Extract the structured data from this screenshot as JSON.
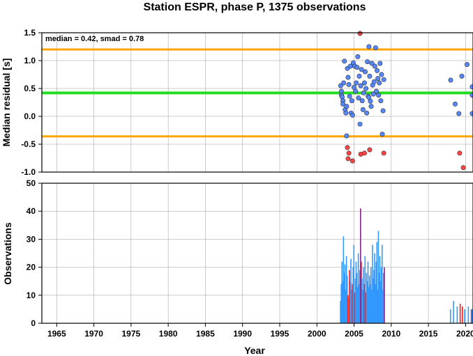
{
  "chart_data": [
    {
      "type": "scatter",
      "title": "Station ESPR, phase P, 1375 observations",
      "ylabel": "Median residual [s]",
      "xlim": [
        1963,
        2021
      ],
      "ylim": [
        -1.0,
        1.5
      ],
      "yticks": [
        "1.5",
        "1.0",
        "0.5",
        "0.0",
        "-0.5",
        "-1.0"
      ],
      "grid": true,
      "annotation": "median = 0.42, smad = 0.78",
      "reference_lines": {
        "median": 0.42,
        "upper": 1.2,
        "lower": -0.36
      },
      "colors": {
        "median_line": "#22dd22",
        "bound_line": "#ffa500",
        "inlier": "#5588ff",
        "outlier": "#ff4444"
      },
      "series": [
        {
          "kind": "inlier",
          "points": [
            [
              2003.2,
              0.55
            ],
            [
              2003.3,
              0.45
            ],
            [
              2003.3,
              0.38
            ],
            [
              2003.4,
              0.35
            ],
            [
              2003.5,
              0.28
            ],
            [
              2003.5,
              0.22
            ],
            [
              2003.6,
              0.6
            ],
            [
              2003.7,
              0.99
            ],
            [
              2003.8,
              0.12
            ],
            [
              2003.9,
              0.06
            ],
            [
              2004.0,
              0.18
            ],
            [
              2004.0,
              -0.35
            ],
            [
              2004.1,
              0.86
            ],
            [
              2004.2,
              0.7
            ],
            [
              2004.3,
              0.57
            ],
            [
              2004.4,
              0.36
            ],
            [
              2004.5,
              0.9
            ],
            [
              2004.6,
              0.06
            ],
            [
              2004.7,
              0.28
            ],
            [
              2004.8,
              0.02
            ],
            [
              2004.9,
              0.96
            ],
            [
              2005.0,
              0.52
            ],
            [
              2005.1,
              0.9
            ],
            [
              2005.2,
              0.45
            ],
            [
              2005.3,
              0.6
            ],
            [
              2005.4,
              0.88
            ],
            [
              2005.5,
              1.07
            ],
            [
              2005.6,
              0.33
            ],
            [
              2005.7,
              0.72
            ],
            [
              2005.8,
              -0.14
            ],
            [
              2005.9,
              0.55
            ],
            [
              2006.0,
              0.84
            ],
            [
              2006.1,
              0.28
            ],
            [
              2006.2,
              0.12
            ],
            [
              2006.3,
              0.42
            ],
            [
              2006.4,
              0.6
            ],
            [
              2006.5,
              0.8
            ],
            [
              2006.6,
              0.5
            ],
            [
              2006.7,
              0.06
            ],
            [
              2006.8,
              0.98
            ],
            [
              2006.9,
              0.36
            ],
            [
              2007.0,
              1.25
            ],
            [
              2007.0,
              0.34
            ],
            [
              2007.1,
              0.72
            ],
            [
              2007.2,
              0.27
            ],
            [
              2007.3,
              0.18
            ],
            [
              2007.4,
              0.95
            ],
            [
              2007.5,
              0.56
            ],
            [
              2007.6,
              0.4
            ],
            [
              2007.7,
              0.62
            ],
            [
              2007.8,
              0.9
            ],
            [
              2007.9,
              1.23
            ],
            [
              2008.0,
              0.45
            ],
            [
              2008.1,
              0.82
            ],
            [
              2008.2,
              0.68
            ],
            [
              2008.3,
              0.38
            ],
            [
              2008.4,
              0.6
            ],
            [
              2008.5,
              0.95
            ],
            [
              2008.6,
              0.28
            ],
            [
              2008.7,
              0.75
            ],
            [
              2008.8,
              -0.32
            ],
            [
              2008.9,
              0.1
            ],
            [
              2009.0,
              0.66
            ],
            [
              2018.0,
              0.65
            ],
            [
              2018.6,
              0.22
            ],
            [
              2019.1,
              0.05
            ],
            [
              2019.5,
              0.72
            ],
            [
              2020.2,
              0.93
            ],
            [
              2020.9,
              0.53
            ],
            [
              2021.0,
              0.38
            ],
            [
              2021.0,
              0.05
            ]
          ]
        },
        {
          "kind": "outlier",
          "points": [
            [
              2004.1,
              -0.56
            ],
            [
              2004.2,
              -0.76
            ],
            [
              2004.3,
              -0.66
            ],
            [
              2004.8,
              -0.8
            ],
            [
              2005.8,
              1.5
            ],
            [
              2005.9,
              -0.68
            ],
            [
              2006.4,
              -0.66
            ],
            [
              2007.1,
              -0.6
            ],
            [
              2009.0,
              -0.66
            ],
            [
              2019.2,
              -0.66
            ],
            [
              2019.7,
              -0.92
            ]
          ]
        }
      ]
    },
    {
      "type": "bar",
      "ylabel": "Observations",
      "xlabel": "Year",
      "xlim": [
        1963,
        2021
      ],
      "ylim": [
        0,
        50
      ],
      "xticks": [
        "1965",
        "1970",
        "1975",
        "1980",
        "1985",
        "1990",
        "1995",
        "2000",
        "2005",
        "2010",
        "2015",
        "2020"
      ],
      "yticks": [
        "50",
        "40",
        "30",
        "20",
        "10",
        "0"
      ],
      "grid": true,
      "colors": {
        "bar_blue": "#3399ff",
        "bar_red": "#dd2222",
        "bar_purple": "#882288"
      },
      "bars": [
        [
          2003.1,
          8,
          "b"
        ],
        [
          2003.2,
          14,
          "b"
        ],
        [
          2003.3,
          22,
          "b"
        ],
        [
          2003.4,
          15,
          "b"
        ],
        [
          2003.5,
          31,
          "b"
        ],
        [
          2003.6,
          18,
          "b"
        ],
        [
          2003.7,
          21,
          "b"
        ],
        [
          2003.8,
          12,
          "b"
        ],
        [
          2003.9,
          24,
          "b"
        ],
        [
          2004.0,
          17,
          "b"
        ],
        [
          2004.1,
          10,
          "r"
        ],
        [
          2004.2,
          9,
          "b"
        ],
        [
          2004.3,
          19,
          "r"
        ],
        [
          2004.4,
          15,
          "b"
        ],
        [
          2004.5,
          23,
          "b"
        ],
        [
          2004.6,
          12,
          "b"
        ],
        [
          2004.7,
          14,
          "r"
        ],
        [
          2004.8,
          20,
          "b"
        ],
        [
          2004.9,
          28,
          "b"
        ],
        [
          2005.0,
          11,
          "r"
        ],
        [
          2005.1,
          16,
          "b"
        ],
        [
          2005.2,
          22,
          "b"
        ],
        [
          2005.3,
          18,
          "b"
        ],
        [
          2005.4,
          13,
          "b"
        ],
        [
          2005.5,
          25,
          "b"
        ],
        [
          2005.6,
          14,
          "b"
        ],
        [
          2005.7,
          19,
          "b"
        ],
        [
          2005.8,
          41,
          "p"
        ],
        [
          2005.9,
          22,
          "r"
        ],
        [
          2006.0,
          16,
          "b"
        ],
        [
          2006.1,
          12,
          "b"
        ],
        [
          2006.2,
          20,
          "b"
        ],
        [
          2006.3,
          14,
          "r"
        ],
        [
          2006.4,
          24,
          "b"
        ],
        [
          2006.5,
          11,
          "r"
        ],
        [
          2006.6,
          18,
          "b"
        ],
        [
          2006.7,
          15,
          "b"
        ],
        [
          2006.8,
          22,
          "b"
        ],
        [
          2006.9,
          13,
          "b"
        ],
        [
          2007.0,
          17,
          "b"
        ],
        [
          2007.1,
          14,
          "b"
        ],
        [
          2007.2,
          20,
          "b"
        ],
        [
          2007.3,
          12,
          "b"
        ],
        [
          2007.4,
          28,
          "b"
        ],
        [
          2007.5,
          16,
          "b"
        ],
        [
          2007.6,
          19,
          "b"
        ],
        [
          2007.7,
          25,
          "b"
        ],
        [
          2007.8,
          14,
          "b"
        ],
        [
          2007.9,
          22,
          "b"
        ],
        [
          2008.0,
          29,
          "b"
        ],
        [
          2008.1,
          12,
          "b"
        ],
        [
          2008.2,
          33,
          "b"
        ],
        [
          2008.3,
          18,
          "b"
        ],
        [
          2008.4,
          24,
          "b"
        ],
        [
          2008.5,
          15,
          "b"
        ],
        [
          2008.6,
          20,
          "b"
        ],
        [
          2008.7,
          28,
          "b"
        ],
        [
          2008.8,
          12,
          "b"
        ],
        [
          2008.9,
          18,
          "b"
        ],
        [
          2009.0,
          20,
          "p"
        ],
        [
          2017.9,
          5,
          "b"
        ],
        [
          2018.3,
          8,
          "b"
        ],
        [
          2018.8,
          6,
          "b"
        ],
        [
          2019.2,
          7,
          "r"
        ],
        [
          2019.5,
          6,
          "r"
        ],
        [
          2019.8,
          5,
          "b"
        ],
        [
          2020.3,
          6,
          "b"
        ],
        [
          2020.7,
          5,
          "r"
        ],
        [
          2020.95,
          5,
          "b"
        ]
      ]
    }
  ]
}
